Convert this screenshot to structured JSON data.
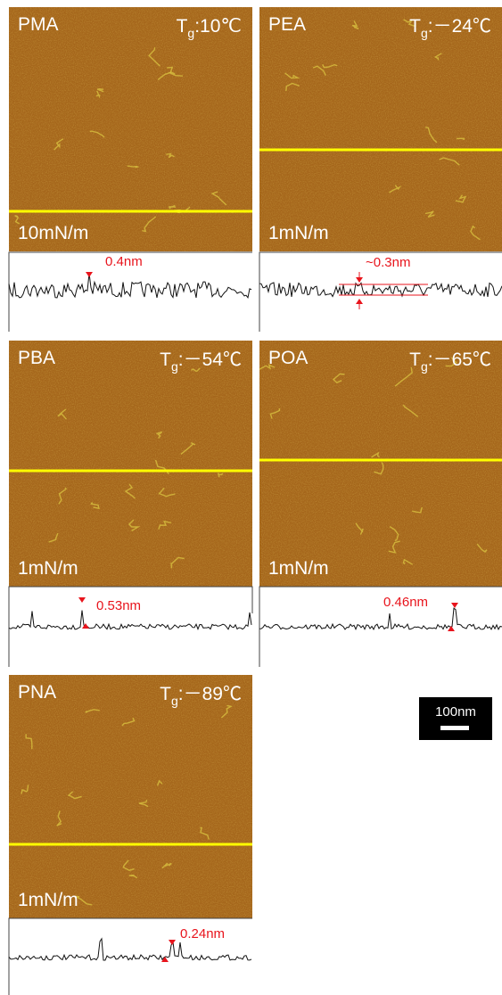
{
  "panels": [
    {
      "name": "PMA",
      "tg_symbol": "T",
      "tg_subscript": "g",
      "tg_value": ":10℃",
      "pressure": "10mN/m",
      "height": "0.4nm"
    },
    {
      "name": "PEA",
      "tg_symbol": "T",
      "tg_subscript": "g",
      "tg_value": ":－24℃",
      "pressure": "1mN/m",
      "height": "~0.3nm"
    },
    {
      "name": "PBA",
      "tg_symbol": "T",
      "tg_subscript": "g",
      "tg_value": ":－54℃",
      "pressure": "1mN/m",
      "height": "0.53nm"
    },
    {
      "name": "POA",
      "tg_symbol": "T",
      "tg_subscript": "g",
      "tg_value": ":－65℃",
      "pressure": "1mN/m",
      "height": "0.46nm"
    },
    {
      "name": "PNA",
      "tg_symbol": "T",
      "tg_subscript": "g",
      "tg_value": ":－89℃",
      "pressure": "1mN/m",
      "height": "0.24nm"
    }
  ],
  "scale_bar": "100nm"
}
